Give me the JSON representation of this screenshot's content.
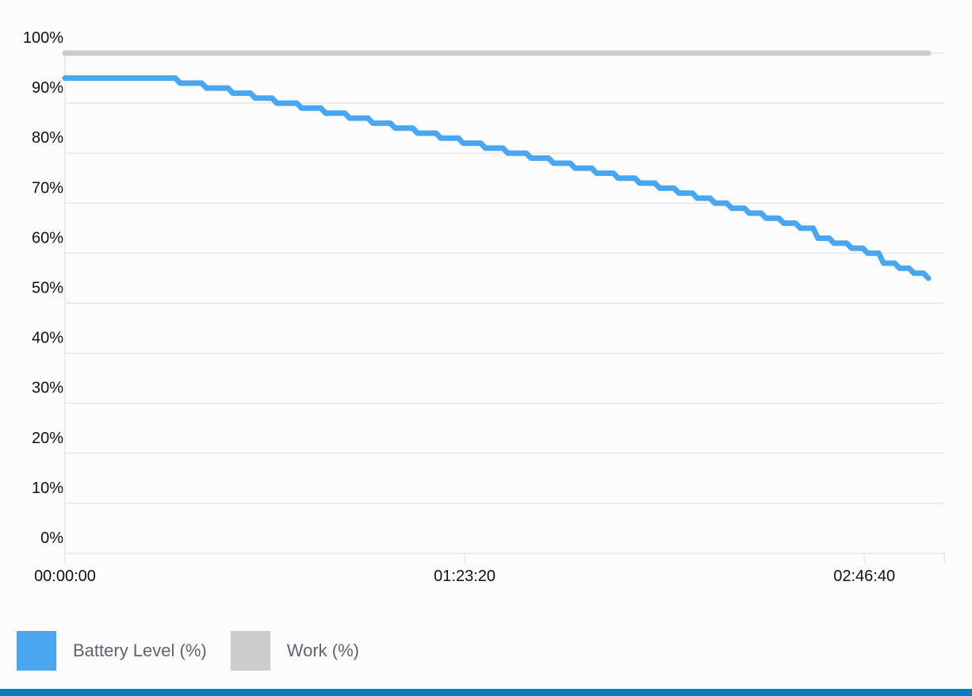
{
  "chart_data": {
    "type": "line",
    "title": "",
    "xlabel": "",
    "ylabel": "",
    "x_unit": "seconds",
    "xlim": [
      0,
      11000
    ],
    "ylim": [
      0,
      100
    ],
    "y_ticks": [
      "0%",
      "10%",
      "20%",
      "30%",
      "40%",
      "50%",
      "60%",
      "70%",
      "80%",
      "90%",
      "100%"
    ],
    "x_ticks": [
      {
        "value": 0,
        "label": "00:00:00"
      },
      {
        "value": 5000,
        "label": "01:23:20"
      },
      {
        "value": 10000,
        "label": "02:46:40"
      }
    ],
    "grid": true,
    "legend_position": "bottom-left",
    "series": [
      {
        "name": "Battery Level (%)",
        "color": "#4aa7ef",
        "x": [
          0,
          1440,
          1770,
          2100,
          2380,
          2650,
          2960,
          3260,
          3560,
          3850,
          4130,
          4410,
          4700,
          4980,
          5260,
          5540,
          5830,
          6110,
          6380,
          6650,
          6920,
          7190,
          7440,
          7680,
          7910,
          8130,
          8340,
          8560,
          8770,
          8990,
          9200,
          9420,
          9620,
          9840,
          10040,
          10240,
          10440,
          10620,
          10800
        ],
        "values": [
          95,
          94,
          93,
          92,
          91,
          90,
          89,
          88,
          87,
          86,
          85,
          84,
          83,
          82,
          81,
          80,
          79,
          78,
          77,
          76,
          75,
          74,
          73,
          72,
          71,
          70,
          69,
          68,
          67,
          66,
          65,
          63,
          62,
          61,
          60,
          58,
          57,
          56,
          55
        ]
      },
      {
        "name": "Work (%)",
        "color": "#cccccc",
        "x": [
          0,
          10800
        ],
        "values": [
          100,
          100
        ]
      }
    ]
  },
  "legend": {
    "items": [
      {
        "label": "Battery Level (%)",
        "color": "#4aa7ef"
      },
      {
        "label": "Work (%)",
        "color": "#cccccc"
      }
    ]
  },
  "colors": {
    "bottom_bar": "#0a7cc0",
    "grid": "#e2e2e2",
    "background": "#fcfcfc"
  }
}
